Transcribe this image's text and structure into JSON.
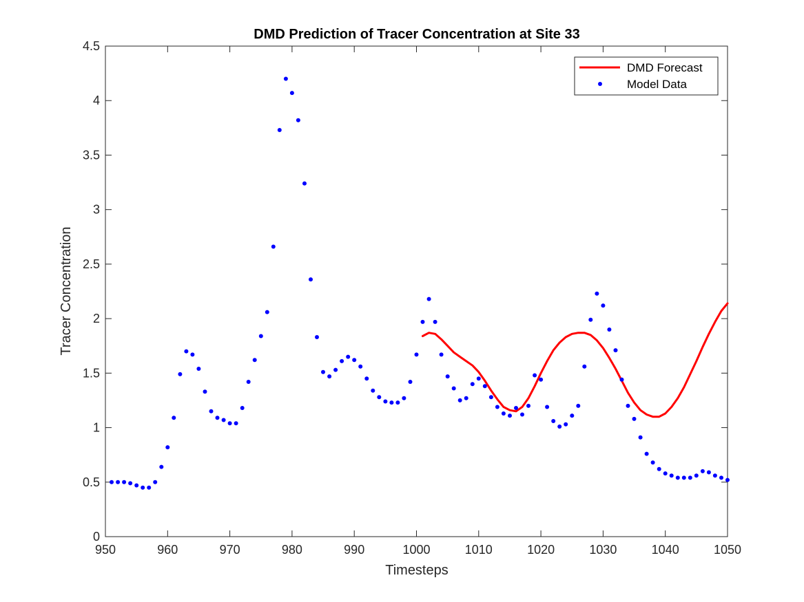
{
  "chart_data": {
    "type": "scatter",
    "title": "DMD Prediction of Tracer Concentration at Site 33",
    "xlabel": "Timesteps",
    "ylabel": "Tracer Concentration",
    "xlim": [
      950,
      1050
    ],
    "ylim": [
      0,
      4.5
    ],
    "xticks": [
      950,
      960,
      970,
      980,
      990,
      1000,
      1010,
      1020,
      1030,
      1040,
      1050
    ],
    "yticks": [
      0,
      0.5,
      1,
      1.5,
      2,
      2.5,
      3,
      3.5,
      4,
      4.5
    ],
    "xtick_labels": [
      "950",
      "960",
      "970",
      "980",
      "990",
      "1000",
      "1010",
      "1020",
      "1030",
      "1040",
      "1050"
    ],
    "ytick_labels": [
      "0",
      "0.5",
      "1",
      "1.5",
      "2",
      "2.5",
      "3",
      "3.5",
      "4",
      "4.5"
    ],
    "grid": false,
    "legend_position": "top-right",
    "series": [
      {
        "name": "DMD Forecast",
        "kind": "line",
        "color": "#ff0000",
        "x": [
          1001,
          1002,
          1003,
          1004,
          1005,
          1006,
          1007,
          1008,
          1009,
          1010,
          1011,
          1012,
          1013,
          1014,
          1015,
          1016,
          1017,
          1018,
          1019,
          1020,
          1021,
          1022,
          1023,
          1024,
          1025,
          1026,
          1027,
          1028,
          1029,
          1030,
          1031,
          1032,
          1033,
          1034,
          1035,
          1036,
          1037,
          1038,
          1039,
          1040,
          1041,
          1042,
          1043,
          1044,
          1045,
          1046,
          1047,
          1048,
          1049,
          1050
        ],
        "y": [
          1.84,
          1.87,
          1.86,
          1.81,
          1.75,
          1.69,
          1.65,
          1.61,
          1.57,
          1.51,
          1.43,
          1.34,
          1.26,
          1.19,
          1.16,
          1.15,
          1.19,
          1.27,
          1.38,
          1.5,
          1.61,
          1.71,
          1.78,
          1.83,
          1.86,
          1.87,
          1.87,
          1.85,
          1.8,
          1.73,
          1.64,
          1.54,
          1.43,
          1.32,
          1.23,
          1.16,
          1.12,
          1.1,
          1.1,
          1.13,
          1.19,
          1.27,
          1.37,
          1.49,
          1.61,
          1.74,
          1.86,
          1.97,
          2.07,
          2.14
        ]
      },
      {
        "name": "Model Data",
        "kind": "scatter",
        "color": "#0000ff",
        "x": [
          951,
          952,
          953,
          954,
          955,
          956,
          957,
          958,
          959,
          960,
          961,
          962,
          963,
          964,
          965,
          966,
          967,
          968,
          969,
          970,
          971,
          972,
          973,
          974,
          975,
          976,
          977,
          978,
          979,
          980,
          981,
          982,
          983,
          984,
          985,
          986,
          987,
          988,
          989,
          990,
          991,
          992,
          993,
          994,
          995,
          996,
          997,
          998,
          999,
          1000,
          1001,
          1002,
          1003,
          1004,
          1005,
          1006,
          1007,
          1008,
          1009,
          1010,
          1011,
          1012,
          1013,
          1014,
          1015,
          1016,
          1017,
          1018,
          1019,
          1020,
          1021,
          1022,
          1023,
          1024,
          1025,
          1026,
          1027,
          1028,
          1029,
          1030,
          1031,
          1032,
          1033,
          1034,
          1035,
          1036,
          1037,
          1038,
          1039,
          1040,
          1041,
          1042,
          1043,
          1044,
          1045,
          1046,
          1047,
          1048,
          1049,
          1050
        ],
        "y": [
          0.5,
          0.5,
          0.5,
          0.49,
          0.47,
          0.45,
          0.45,
          0.5,
          0.64,
          0.82,
          1.09,
          1.49,
          1.7,
          1.67,
          1.54,
          1.33,
          1.15,
          1.09,
          1.07,
          1.04,
          1.04,
          1.18,
          1.42,
          1.62,
          1.84,
          2.06,
          2.66,
          3.73,
          4.2,
          4.07,
          3.82,
          3.24,
          2.36,
          1.83,
          1.51,
          1.47,
          1.53,
          1.61,
          1.65,
          1.62,
          1.56,
          1.45,
          1.34,
          1.28,
          1.24,
          1.23,
          1.23,
          1.27,
          1.42,
          1.67,
          1.97,
          2.18,
          1.97,
          1.67,
          1.47,
          1.36,
          1.25,
          1.27,
          1.4,
          1.45,
          1.38,
          1.28,
          1.19,
          1.13,
          1.11,
          1.18,
          1.12,
          1.2,
          1.48,
          1.44,
          1.19,
          1.06,
          1.01,
          1.03,
          1.11,
          1.2,
          1.56,
          1.99,
          2.23,
          2.12,
          1.9,
          1.71,
          1.44,
          1.2,
          1.08,
          0.91,
          0.76,
          0.68,
          0.62,
          0.58,
          0.56,
          0.54,
          0.54,
          0.54,
          0.56,
          0.6,
          0.59,
          0.56,
          0.54,
          0.52
        ]
      }
    ]
  }
}
